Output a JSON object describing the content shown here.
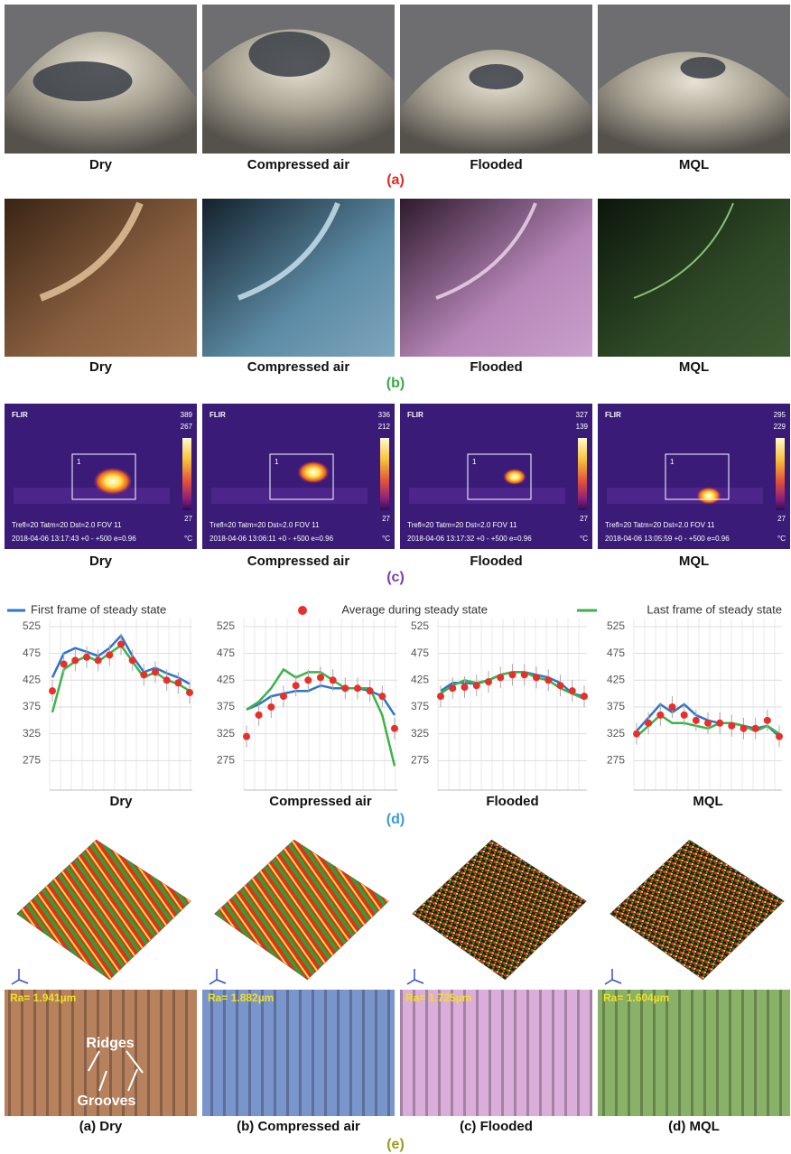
{
  "panel_a": {
    "labels": [
      "Dry",
      "Compressed air",
      "Flooded",
      "MQL"
    ],
    "caption": "(a)"
  },
  "panel_b": {
    "labels": [
      "Dry",
      "Compressed air",
      "Flooded",
      "MQL"
    ],
    "caption": "(b)"
  },
  "panel_c": {
    "labels": [
      "Dry",
      "Compressed air",
      "Flooded",
      "MQL"
    ],
    "caption": "(c)",
    "thermal": [
      {
        "brand": "FLIR",
        "spot": "389",
        "max": "267",
        "min": "27",
        "box": "1",
        "params": "Trefl=20 Tatm=20 Dst=2.0 FOV 11",
        "stamp": "2018-04-06 13:17:43 +0 - +500 e=0.96",
        "unit": "°C"
      },
      {
        "brand": "FLIR",
        "spot": "336",
        "max": "212",
        "min": "27",
        "box": "1",
        "params": "Trefl=20 Tatm=20 Dst=2.0 FOV 11",
        "stamp": "2018-04-06 13:06:11 +0 - +500 e=0.96",
        "unit": "°C"
      },
      {
        "brand": "FLIR",
        "spot": "327",
        "max": "139",
        "min": "27",
        "box": "1",
        "params": "Trefl=20 Tatm=20 Dst=2.0 FOV 11",
        "stamp": "2018-04-06 13:17:32 +0 - +500 e=0.96",
        "unit": "°C"
      },
      {
        "brand": "FLIR",
        "spot": "295",
        "max": "229",
        "min": "27",
        "box": "1",
        "params": "Trefl=20 Tatm=20 Dst=2.0 FOV 11",
        "stamp": "2018-04-06 13:05:59 +0 - +500 e=0.96",
        "unit": "°C"
      }
    ]
  },
  "chart_data": [
    {
      "type": "line",
      "title": "Dry",
      "ylim": [
        220,
        540
      ],
      "yticks": [
        275,
        325,
        375,
        425,
        475,
        525
      ],
      "grid": true,
      "series": [
        {
          "name": "First frame of steady state",
          "color": "#2e75c8",
          "style": "line",
          "values": [
            430,
            475,
            485,
            478,
            470,
            485,
            508,
            470,
            440,
            448,
            438,
            430,
            418
          ]
        },
        {
          "name": "Average during steady state",
          "color": "#e8302a",
          "style": "markers",
          "values": [
            405,
            455,
            462,
            468,
            462,
            472,
            492,
            462,
            435,
            440,
            425,
            420,
            402
          ]
        },
        {
          "name": "Last frame of steady state",
          "color": "#3cb34a",
          "style": "line",
          "values": [
            365,
            445,
            460,
            470,
            460,
            475,
            490,
            460,
            430,
            440,
            425,
            418,
            405
          ]
        }
      ]
    },
    {
      "type": "line",
      "title": "Compressed air",
      "ylim": [
        220,
        540
      ],
      "yticks": [
        275,
        325,
        375,
        425,
        475,
        525
      ],
      "grid": true,
      "series": [
        {
          "color": "#2e75c8",
          "style": "line",
          "values": [
            370,
            380,
            395,
            400,
            405,
            405,
            415,
            410,
            410,
            410,
            405,
            395,
            360
          ]
        },
        {
          "color": "#e8302a",
          "style": "markers",
          "values": [
            320,
            360,
            375,
            395,
            415,
            425,
            430,
            425,
            410,
            410,
            405,
            395,
            335
          ]
        },
        {
          "color": "#3cb34a",
          "style": "line",
          "values": [
            370,
            385,
            410,
            445,
            430,
            440,
            440,
            425,
            410,
            410,
            410,
            360,
            265
          ]
        }
      ]
    },
    {
      "type": "line",
      "title": "Flooded",
      "ylim": [
        220,
        540
      ],
      "yticks": [
        275,
        325,
        375,
        425,
        475,
        525
      ],
      "grid": true,
      "series": [
        {
          "color": "#2e75c8",
          "style": "line",
          "values": [
            405,
            420,
            420,
            418,
            425,
            435,
            440,
            440,
            435,
            430,
            420,
            400,
            395
          ]
        },
        {
          "color": "#e8302a",
          "style": "markers",
          "values": [
            395,
            410,
            412,
            415,
            422,
            430,
            435,
            435,
            430,
            425,
            415,
            405,
            395
          ]
        },
        {
          "color": "#3cb34a",
          "style": "line",
          "values": [
            400,
            415,
            425,
            420,
            425,
            435,
            440,
            440,
            430,
            425,
            410,
            400,
            390
          ]
        }
      ]
    },
    {
      "type": "line",
      "title": "MQL",
      "ylim": [
        220,
        540
      ],
      "yticks": [
        275,
        325,
        375,
        425,
        475,
        525
      ],
      "grid": true,
      "series": [
        {
          "color": "#2e75c8",
          "style": "line",
          "values": [
            330,
            355,
            380,
            365,
            380,
            360,
            350,
            345,
            345,
            340,
            335,
            340,
            320
          ]
        },
        {
          "color": "#e8302a",
          "style": "markers",
          "values": [
            325,
            345,
            360,
            375,
            360,
            350,
            345,
            345,
            340,
            335,
            335,
            350,
            320
          ]
        },
        {
          "color": "#3cb34a",
          "style": "line",
          "values": [
            320,
            340,
            360,
            345,
            345,
            340,
            335,
            345,
            345,
            340,
            330,
            340,
            325
          ]
        }
      ]
    }
  ],
  "caption_d": "(d)",
  "panel_e": {
    "labels": [
      "(a) Dry",
      "(b) Compressed air",
      "(c) Flooded",
      "(d) MQL"
    ],
    "caption": "(e)",
    "roughness": [
      "Ra= 1.941µm",
      "Ra= 1.882µm",
      "Ra= 1.725µm",
      "Ra= 1.604µm"
    ],
    "annotations": [
      "Ridges",
      "Grooves"
    ]
  }
}
